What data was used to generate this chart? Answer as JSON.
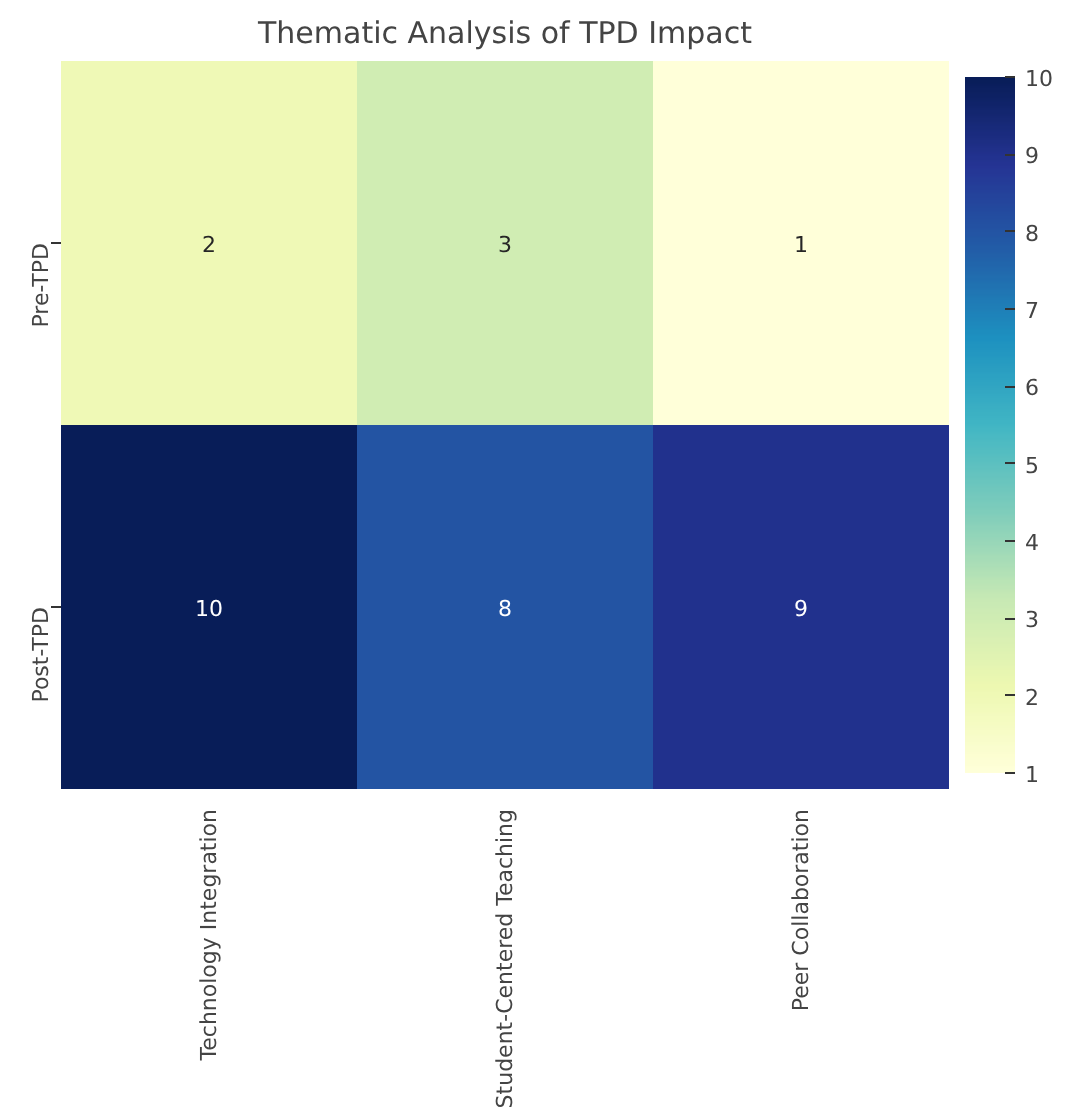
{
  "chart_data": {
    "type": "heatmap",
    "title": "Thematic Analysis of TPD Impact",
    "categories": [
      "Technology Integration",
      "Student-Centered Teaching",
      "Peer Collaboration"
    ],
    "y_categories": [
      "Pre-TPD",
      "Post-TPD"
    ],
    "cells": [
      [
        2,
        3,
        1
      ],
      [
        10,
        8,
        9
      ]
    ],
    "clim": [
      1,
      10
    ],
    "cticks": [
      1,
      2,
      3,
      4,
      5,
      6,
      7,
      8,
      9,
      10
    ],
    "data_labels": true
  }
}
